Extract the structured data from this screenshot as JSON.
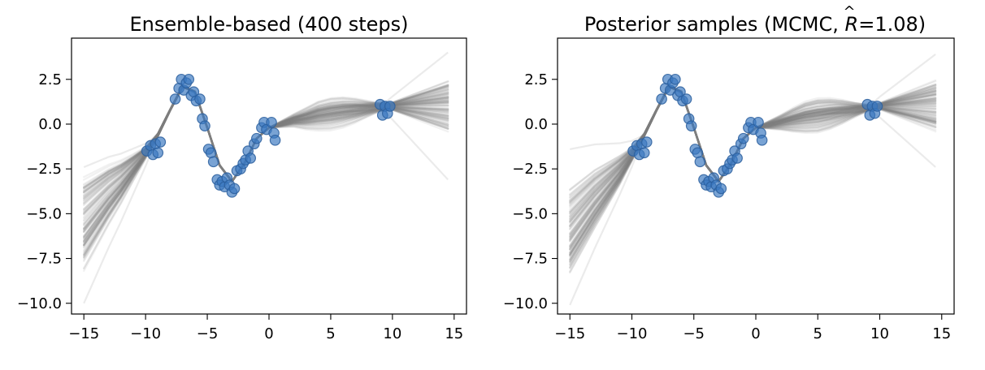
{
  "figure": {
    "panels": [
      {
        "title": "Ensemble-based  (400 steps)"
      },
      {
        "title_prefix": "Posterior samples  (MCMC, ",
        "title_symbol": "R",
        "title_hat": "^",
        "title_suffix": "=1.08)"
      }
    ]
  },
  "chart_data": [
    {
      "type": "line",
      "title": "Ensemble-based  (400 steps)",
      "xlabel": "",
      "ylabel": "",
      "xlim": [
        -16.0,
        16.0
      ],
      "ylim": [
        -10.6,
        4.8
      ],
      "xticks": [
        -15,
        -10,
        -5,
        0,
        5,
        10,
        15
      ],
      "xtick_labels": [
        "−15",
        "−10",
        "−5",
        "0",
        "5",
        "10",
        "15"
      ],
      "yticks": [
        2.5,
        0.0,
        -2.5,
        -5.0,
        -7.5,
        -10.0
      ],
      "ytick_labels": [
        "2.5",
        "0.0",
        "−2.5",
        "−5.0",
        "−7.5",
        "−10.0"
      ],
      "grid": false,
      "legend": "none",
      "colors": {
        "samples": "#808080",
        "points": "#3a78c0",
        "points_edge": "#2c5f9e",
        "axes": "#000000"
      },
      "observed_points": {
        "x": [
          -9.9,
          -9.6,
          -9.4,
          -9.2,
          -9.0,
          -8.8,
          -7.6,
          -7.3,
          -7.1,
          -6.9,
          -6.7,
          -6.5,
          -6.3,
          -6.1,
          -5.9,
          -5.6,
          -5.4,
          -5.2,
          -4.9,
          -4.7,
          -4.5,
          -4.2,
          -4.0,
          -3.8,
          -3.6,
          -3.4,
          -3.2,
          -3.0,
          -2.8,
          -2.6,
          -2.3,
          -2.1,
          -1.9,
          -1.7,
          -1.5,
          -1.2,
          -1.0,
          -0.6,
          -0.4,
          -0.2,
          0.2,
          0.4,
          0.5,
          9.0,
          9.2,
          9.4,
          9.6,
          9.8
        ],
        "y": [
          -1.5,
          -1.2,
          -1.7,
          -1.1,
          -1.6,
          -1.0,
          1.4,
          2.0,
          2.5,
          1.9,
          2.3,
          2.5,
          1.6,
          1.8,
          1.3,
          1.4,
          0.3,
          -0.1,
          -1.4,
          -1.6,
          -2.1,
          -3.1,
          -3.4,
          -3.2,
          -3.5,
          -3.0,
          -3.4,
          -3.8,
          -3.6,
          -2.6,
          -2.5,
          -2.2,
          -2.0,
          -1.5,
          -1.9,
          -1.1,
          -0.8,
          -0.2,
          0.1,
          -0.3,
          0.1,
          -0.5,
          -0.9,
          1.1,
          0.5,
          1.0,
          0.6,
          1.0
        ]
      },
      "samples": {
        "count": 120,
        "x": [
          -15,
          -14,
          -13,
          -12,
          -11,
          -10,
          -9,
          -8,
          -7,
          -6,
          -5,
          -4,
          -3,
          -2,
          -1,
          0,
          1,
          2,
          3,
          4,
          5,
          6,
          7,
          8,
          9,
          10,
          11,
          12,
          13,
          14,
          14.5
        ],
        "mean_y": [
          -5.5,
          -4.7,
          -3.9,
          -3.2,
          -2.4,
          -1.6,
          -0.6,
          0.8,
          2.1,
          1.8,
          -0.2,
          -2.3,
          -3.2,
          -2.2,
          -0.8,
          -0.2,
          0.0,
          0.2,
          0.3,
          0.45,
          0.55,
          0.65,
          0.75,
          0.85,
          0.95,
          1.0,
          1.0,
          1.0,
          1.0,
          1.0,
          1.0
        ],
        "spread_y": [
          2.8,
          2.3,
          1.8,
          1.3,
          0.8,
          0.35,
          0.1,
          0.05,
          0.05,
          0.05,
          0.05,
          0.05,
          0.05,
          0.05,
          0.05,
          0.1,
          0.3,
          0.5,
          0.75,
          0.95,
          1.05,
          1.05,
          0.95,
          0.75,
          0.5,
          0.25,
          0.55,
          0.85,
          1.15,
          1.45,
          1.6
        ],
        "min_end": [
          -10.0,
          -3.1
        ],
        "max_end": [
          -2.4,
          4.0
        ]
      }
    },
    {
      "type": "line",
      "title": "Posterior samples  (MCMC, R̂=1.08)",
      "xlabel": "",
      "ylabel": "",
      "xlim": [
        -16.0,
        16.0
      ],
      "ylim": [
        -10.6,
        4.8
      ],
      "xticks": [
        -15,
        -10,
        -5,
        0,
        5,
        10,
        15
      ],
      "xtick_labels": [
        "−15",
        "−10",
        "−5",
        "0",
        "5",
        "10",
        "15"
      ],
      "yticks": [
        2.5,
        0.0,
        -2.5,
        -5.0,
        -7.5,
        -10.0
      ],
      "ytick_labels": [
        "2.5",
        "0.0",
        "−2.5",
        "−5.0",
        "−7.5",
        "−10.0"
      ],
      "grid": false,
      "legend": "none",
      "colors": {
        "samples": "#808080",
        "points": "#3a78c0",
        "points_edge": "#2c5f9e",
        "axes": "#000000"
      },
      "observed_points": {
        "x": [
          -9.9,
          -9.6,
          -9.4,
          -9.2,
          -9.0,
          -8.8,
          -7.6,
          -7.3,
          -7.1,
          -6.9,
          -6.7,
          -6.5,
          -6.3,
          -6.1,
          -5.9,
          -5.6,
          -5.4,
          -5.2,
          -4.9,
          -4.7,
          -4.5,
          -4.2,
          -4.0,
          -3.8,
          -3.6,
          -3.4,
          -3.2,
          -3.0,
          -2.8,
          -2.6,
          -2.3,
          -2.1,
          -1.9,
          -1.7,
          -1.5,
          -1.2,
          -1.0,
          -0.6,
          -0.4,
          -0.2,
          0.2,
          0.4,
          0.5,
          9.0,
          9.2,
          9.4,
          9.6,
          9.8
        ],
        "y": [
          -1.5,
          -1.2,
          -1.7,
          -1.1,
          -1.6,
          -1.0,
          1.4,
          2.0,
          2.5,
          1.9,
          2.3,
          2.5,
          1.6,
          1.8,
          1.3,
          1.4,
          0.3,
          -0.1,
          -1.4,
          -1.6,
          -2.1,
          -3.1,
          -3.4,
          -3.2,
          -3.5,
          -3.0,
          -3.4,
          -3.8,
          -3.6,
          -2.6,
          -2.5,
          -2.2,
          -2.0,
          -1.5,
          -1.9,
          -1.1,
          -0.8,
          -0.2,
          0.1,
          -0.3,
          0.1,
          -0.5,
          -0.9,
          1.1,
          0.5,
          1.0,
          0.6,
          1.0
        ]
      },
      "samples": {
        "count": 120,
        "x": [
          -15,
          -14,
          -13,
          -12,
          -11,
          -10,
          -9,
          -8,
          -7,
          -6,
          -5,
          -4,
          -3,
          -2,
          -1,
          0,
          1,
          2,
          3,
          4,
          5,
          6,
          7,
          8,
          9,
          10,
          11,
          12,
          13,
          14,
          14.5
        ],
        "mean_y": [
          -6.0,
          -5.1,
          -4.2,
          -3.4,
          -2.6,
          -1.7,
          -0.6,
          0.8,
          2.1,
          1.8,
          -0.2,
          -2.3,
          -3.2,
          -2.2,
          -0.8,
          -0.2,
          -0.05,
          0.1,
          0.25,
          0.4,
          0.5,
          0.6,
          0.7,
          0.8,
          0.9,
          1.0,
          1.0,
          1.0,
          1.0,
          1.0,
          1.0
        ],
        "spread_y": [
          2.6,
          2.2,
          1.8,
          1.35,
          0.9,
          0.4,
          0.1,
          0.05,
          0.05,
          0.05,
          0.05,
          0.05,
          0.05,
          0.05,
          0.05,
          0.1,
          0.35,
          0.6,
          0.85,
          1.05,
          1.15,
          1.1,
          0.95,
          0.7,
          0.4,
          0.2,
          0.5,
          0.8,
          1.1,
          1.4,
          1.55
        ],
        "min_end": [
          -10.1,
          -2.4
        ],
        "max_end": [
          -1.4,
          3.9
        ]
      }
    }
  ]
}
